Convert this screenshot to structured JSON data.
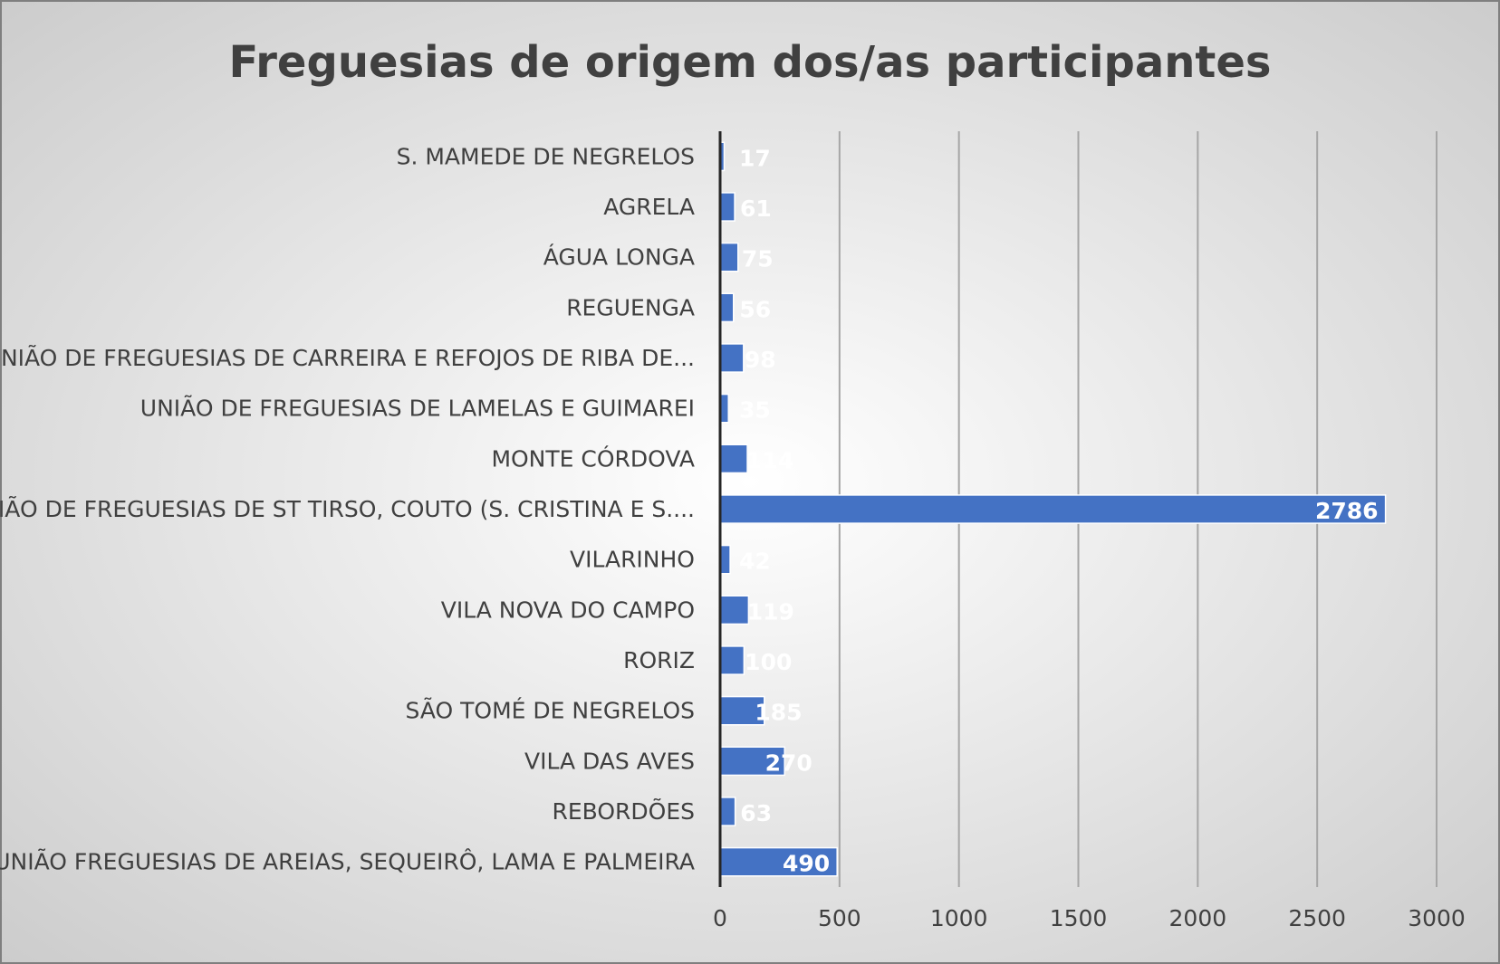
{
  "chart_data": {
    "type": "bar",
    "orientation": "horizontal",
    "title": "Freguesias de origem dos/as participantes",
    "xlabel": "",
    "ylabel": "",
    "xlim": [
      0,
      3000
    ],
    "x_ticks": [
      0,
      500,
      1000,
      1500,
      2000,
      2500,
      3000
    ],
    "grid": "vertical",
    "legend": "none",
    "data_labels": true,
    "categories": [
      "S. MAMEDE DE NEGRELOS",
      "AGRELA",
      "ÁGUA LONGA",
      "REGUENGA",
      "UNIÃO DE FREGUESIAS DE CARREIRA E REFOJOS DE RIBA DE...",
      "UNIÃO DE FREGUESIAS DE LAMELAS E GUIMAREI",
      "MONTE CÓRDOVA",
      "UNIÃO DE FREGUESIAS DE ST TIRSO, COUTO (S. CRISTINA E S....",
      "VILARINHO",
      "VILA NOVA DO CAMPO",
      "RORIZ",
      "SÃO TOMÉ DE NEGRELOS",
      "VILA DAS AVES",
      "REBORDÕES",
      "UNIÃO FREGUESIAS DE AREIAS, SEQUEIRÔ, LAMA E PALMEIRA"
    ],
    "values": [
      17,
      61,
      75,
      56,
      98,
      35,
      114,
      2786,
      42,
      119,
      100,
      185,
      270,
      63,
      490
    ],
    "bar_color": "#4472C4",
    "background_gradient": [
      "#ffffff",
      "#c9c9c9"
    ]
  }
}
